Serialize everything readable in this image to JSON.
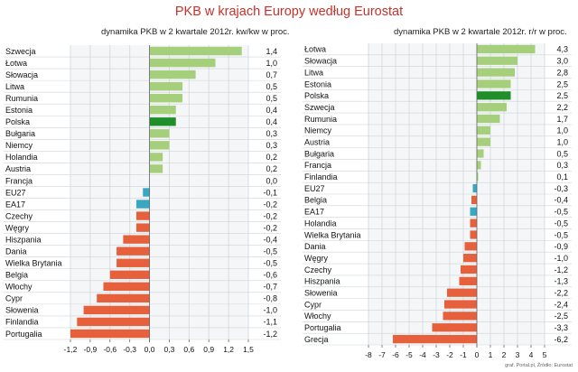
{
  "title": "PKB w krajach Europy według Eurostat",
  "source_note": "graf. Portal.pl, Źródło: Eurostat",
  "colors": {
    "positive": "#a6cf7c",
    "highlight": "#1f8f2a",
    "aggregate": "#37a7c2",
    "negative": "#e6603c",
    "title": "#c8302a",
    "grid": "#d8dde2"
  },
  "chart_data": [
    {
      "type": "bar",
      "orientation": "horizontal",
      "subtitle": "dynamika PKB w 2 kwartale 2012r.  kw/kw w proc.",
      "highlight_category": "Polska",
      "aggregate_categories": [
        "EU27",
        "EA17"
      ],
      "categories": [
        "Szwecja",
        "Łotwa",
        "Słowacja",
        "Litwa",
        "Rumunia",
        "Estonia",
        "Polska",
        "Bułgaria",
        "Niemcy",
        "Holandia",
        "Austria",
        "Francja",
        "EU27",
        "EA17",
        "Czechy",
        "Węgry",
        "Hiszpania",
        "Dania",
        "Wielka Brytania",
        "Belgia",
        "Włochy",
        "Cypr",
        "Słowenia",
        "Finlandia",
        "Portugalia"
      ],
      "values": [
        1.4,
        1.0,
        0.7,
        0.5,
        0.5,
        0.4,
        0.4,
        0.3,
        0.3,
        0.2,
        0.2,
        0.0,
        -0.1,
        -0.2,
        -0.2,
        -0.2,
        -0.4,
        -0.5,
        -0.5,
        -0.6,
        -0.7,
        -0.8,
        -1.0,
        -1.1,
        -1.2
      ],
      "value_labels": [
        "1,4",
        "1,0",
        "0,7",
        "0,5",
        "0,5",
        "0,4",
        "0,4",
        "0,3",
        "0,3",
        "0,2",
        "0,2",
        "0,0",
        "-0,1",
        "-0,2",
        "-0,2",
        "-0,2",
        "-0,4",
        "-0,5",
        "-0,5",
        "-0,6",
        "-0,7",
        "-0,8",
        "-1,0",
        "-1,1",
        "-1,2"
      ],
      "xlim": [
        -1.2,
        1.5
      ],
      "ticks": [
        -1.2,
        -0.9,
        -0.6,
        -0.3,
        0.0,
        0.3,
        0.6,
        0.9,
        1.2,
        1.5
      ],
      "tick_labels": [
        "-1,2",
        "-0,9",
        "-0,6",
        "-0,3",
        "0,0",
        "0,3",
        "0,6",
        "0,9",
        "1,2",
        "1,5"
      ],
      "grid": true
    },
    {
      "type": "bar",
      "orientation": "horizontal",
      "subtitle": "dynamika PKB w 2 kwartale 2012r.  r/r w proc.",
      "highlight_category": "Polska",
      "aggregate_categories": [
        "EU27",
        "EA17"
      ],
      "categories": [
        "Łotwa",
        "Słowacja",
        "Litwa",
        "Estonia",
        "Polska",
        "Szwecja",
        "Rumunia",
        "Niemcy",
        "Austria",
        "Bułgaria",
        "Francja",
        "Finlandia",
        "EU27",
        "Belgia",
        "EA17",
        "Holandia",
        "Wielka Brytania",
        "Dania",
        "Węgry",
        "Czechy",
        "Hiszpania",
        "Słowenia",
        "Cypr",
        "Włochy",
        "Portugalia",
        "Grecja"
      ],
      "values": [
        4.3,
        3.0,
        2.8,
        2.5,
        2.5,
        2.2,
        1.7,
        1.0,
        1.0,
        0.5,
        0.3,
        0.1,
        -0.3,
        -0.4,
        -0.5,
        -0.5,
        -0.5,
        -0.9,
        -1.0,
        -1.2,
        -1.3,
        -2.2,
        -2.4,
        -2.5,
        -3.3,
        -6.2
      ],
      "value_labels": [
        "4,3",
        "3,0",
        "2,8",
        "2,5",
        "2,5",
        "2,2",
        "1,7",
        "1,0",
        "1,0",
        "0,5",
        "0,3",
        "0,1",
        "-0,3",
        "-0,4",
        "-0,5",
        "-0,5",
        "-0,5",
        "-0,9",
        "-1,0",
        "-1,2",
        "-1,3",
        "-2,2",
        "-2,4",
        "-2,5",
        "-3,3",
        "-6,2"
      ],
      "xlim": [
        -8,
        5
      ],
      "ticks": [
        -8,
        -7,
        -6,
        -5,
        -4,
        -3,
        -2,
        -1,
        0,
        1,
        2,
        3,
        4,
        5
      ],
      "tick_labels": [
        "-8",
        "-7",
        "-6",
        "-5",
        "-4",
        "-3",
        "-2",
        "-1",
        "0",
        "1",
        "2",
        "3",
        "4",
        "5"
      ],
      "grid": true
    }
  ]
}
